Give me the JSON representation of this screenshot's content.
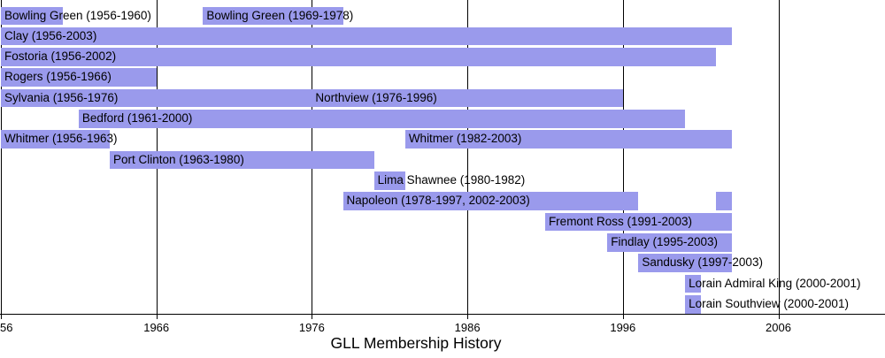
{
  "chart_data": {
    "type": "bar",
    "subtype": "timeline-gantt",
    "title": "GLL Membership History",
    "xlabel": "",
    "ylabel": "",
    "xlim": [
      1956,
      2013
    ],
    "grid": "vertical-black-lines-at-decade-ticks",
    "legend": "none",
    "colors": {
      "bar": "#9a9aec",
      "grid": "#000000",
      "text": "#000000",
      "background": "#ffffff"
    },
    "axis": {
      "start_year": 1956,
      "ticks": [
        {
          "year": 1956,
          "label": "56"
        },
        {
          "year": 1966,
          "label": "1966"
        },
        {
          "year": 1976,
          "label": "1976"
        },
        {
          "year": 1986,
          "label": "1986"
        },
        {
          "year": 1996,
          "label": "1996"
        },
        {
          "year": 2006,
          "label": "2006"
        }
      ]
    },
    "rows": [
      {
        "entries": [
          {
            "label": "Bowling Green (1956-1960)",
            "segments": [
              [
                1956,
                1960
              ]
            ]
          },
          {
            "label": "Bowling Green (1969-1978)",
            "segments": [
              [
                1969,
                1978
              ]
            ]
          }
        ]
      },
      {
        "entries": [
          {
            "label": "Clay (1956-2003)",
            "segments": [
              [
                1956,
                2003
              ]
            ]
          }
        ]
      },
      {
        "entries": [
          {
            "label": "Fostoria (1956-2002)",
            "segments": [
              [
                1956,
                2002
              ]
            ]
          }
        ]
      },
      {
        "entries": [
          {
            "label": "Rogers (1956-1966)",
            "segments": [
              [
                1956,
                1966
              ]
            ]
          }
        ]
      },
      {
        "entries": [
          {
            "label": "Sylvania (1956-1976)",
            "segments": [
              [
                1956,
                1976
              ]
            ]
          },
          {
            "label": "Northview (1976-1996)",
            "segments": [
              [
                1976,
                1996
              ]
            ]
          }
        ]
      },
      {
        "entries": [
          {
            "label": "Bedford (1961-2000)",
            "segments": [
              [
                1961,
                2000
              ]
            ]
          }
        ]
      },
      {
        "entries": [
          {
            "label": "Whitmer (1956-1963)",
            "segments": [
              [
                1956,
                1963
              ]
            ]
          },
          {
            "label": "Whitmer (1982-2003)",
            "segments": [
              [
                1982,
                2003
              ]
            ]
          }
        ]
      },
      {
        "entries": [
          {
            "label": "Port Clinton (1963-1980)",
            "segments": [
              [
                1963,
                1980
              ]
            ]
          }
        ]
      },
      {
        "entries": [
          {
            "label": "Lima Shawnee (1980-1982)",
            "segments": [
              [
                1980,
                1982
              ]
            ]
          }
        ]
      },
      {
        "entries": [
          {
            "label": "Napoleon (1978-1997, 2002-2003)",
            "segments": [
              [
                1978,
                1997
              ],
              [
                2002,
                2003
              ]
            ]
          }
        ]
      },
      {
        "entries": [
          {
            "label": "Fremont Ross (1991-2003)",
            "segments": [
              [
                1991,
                2003
              ]
            ]
          }
        ]
      },
      {
        "entries": [
          {
            "label": "Findlay (1995-2003)",
            "segments": [
              [
                1995,
                2003
              ]
            ]
          }
        ]
      },
      {
        "entries": [
          {
            "label": "Sandusky (1997-2003)",
            "segments": [
              [
                1997,
                2003
              ]
            ]
          }
        ]
      },
      {
        "entries": [
          {
            "label": "Lorain Admiral King (2000-2001)",
            "segments": [
              [
                2000,
                2001
              ]
            ]
          }
        ]
      },
      {
        "entries": [
          {
            "label": "Lorain Southview (2000-2001)",
            "segments": [
              [
                2000,
                2001
              ]
            ]
          }
        ]
      }
    ]
  }
}
